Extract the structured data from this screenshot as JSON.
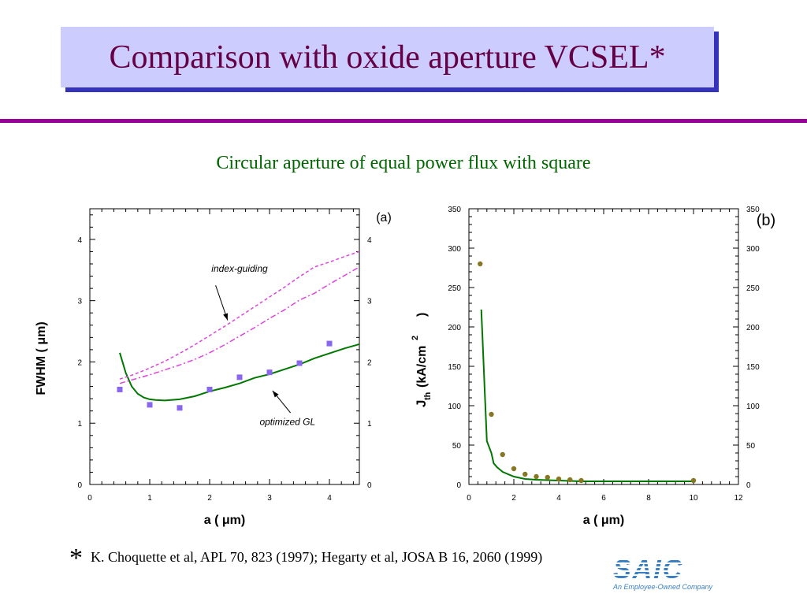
{
  "slide": {
    "title": "Comparison with oxide aperture VCSEL*",
    "subtitle": "Circular aperture of equal power flux with square",
    "footnote_star": "*",
    "footnote_text": "K. Choquette et al, APL 70, 823 (1997);   Hegarty et al, JOSA B 16, 2060 (1999)",
    "logo_word": "SAIC",
    "logo_tagline": "An Employee-Owned Company"
  },
  "colors": {
    "title_box": "#ccccff",
    "title_shadow": "#3333bb",
    "title_text": "#660044",
    "rule": "#990099",
    "subtitle_text": "#006600",
    "curve_green": "#007700",
    "dash_magenta": "#dd44dd",
    "marker_square": "#8866ee",
    "marker_dot": "#887722",
    "logo": "#3a7fc4"
  },
  "chart_data": [
    {
      "panel_label": "(a)",
      "type": "line",
      "xlim": [
        0,
        4.5
      ],
      "ylim": [
        0,
        4.5
      ],
      "xticks": [
        0,
        1,
        2,
        3,
        4
      ],
      "yticks": [
        0,
        1,
        2,
        3,
        4
      ],
      "xlabel": "a ( μm)",
      "ylabel": "FWHM ( μm)",
      "grid": false,
      "series": [
        {
          "style": "solid",
          "points": [
            [
              0.5,
              2.15
            ],
            [
              0.6,
              1.82
            ],
            [
              0.7,
              1.6
            ],
            [
              0.8,
              1.48
            ],
            [
              0.9,
              1.42
            ],
            [
              1.0,
              1.39
            ],
            [
              1.1,
              1.38
            ],
            [
              1.25,
              1.37
            ],
            [
              1.5,
              1.39
            ],
            [
              1.75,
              1.44
            ],
            [
              2.0,
              1.52
            ],
            [
              2.25,
              1.58
            ],
            [
              2.5,
              1.65
            ],
            [
              2.75,
              1.74
            ],
            [
              3.0,
              1.8
            ],
            [
              3.25,
              1.88
            ],
            [
              3.5,
              1.96
            ],
            [
              3.75,
              2.06
            ],
            [
              4.0,
              2.14
            ],
            [
              4.25,
              2.22
            ],
            [
              4.5,
              2.29
            ]
          ]
        },
        {
          "style": "dashed",
          "points": [
            [
              0.5,
              1.72
            ],
            [
              0.75,
              1.8
            ],
            [
              1.0,
              1.9
            ],
            [
              1.25,
              2.01
            ],
            [
              1.5,
              2.14
            ],
            [
              1.75,
              2.28
            ],
            [
              2.0,
              2.43
            ],
            [
              2.25,
              2.58
            ],
            [
              2.5,
              2.74
            ],
            [
              2.75,
              2.9
            ],
            [
              3.0,
              3.06
            ],
            [
              3.25,
              3.22
            ],
            [
              3.5,
              3.39
            ],
            [
              3.75,
              3.55
            ],
            [
              4.0,
              3.63
            ],
            [
              4.25,
              3.72
            ],
            [
              4.5,
              3.8
            ]
          ]
        },
        {
          "style": "dash-dot",
          "points": [
            [
              0.5,
              1.65
            ],
            [
              0.75,
              1.72
            ],
            [
              1.0,
              1.79
            ],
            [
              1.25,
              1.87
            ],
            [
              1.5,
              1.95
            ],
            [
              1.75,
              2.04
            ],
            [
              2.0,
              2.15
            ],
            [
              2.25,
              2.28
            ],
            [
              2.5,
              2.42
            ],
            [
              2.75,
              2.56
            ],
            [
              3.0,
              2.71
            ],
            [
              3.25,
              2.85
            ],
            [
              3.5,
              3.01
            ],
            [
              3.75,
              3.12
            ],
            [
              4.0,
              3.27
            ],
            [
              4.25,
              3.41
            ],
            [
              4.5,
              3.55
            ]
          ]
        },
        {
          "style": "square-markers",
          "points": [
            [
              0.5,
              1.55
            ],
            [
              1.0,
              1.3
            ],
            [
              1.5,
              1.25
            ],
            [
              2.0,
              1.55
            ],
            [
              2.5,
              1.75
            ],
            [
              3.0,
              1.83
            ],
            [
              3.5,
              1.98
            ],
            [
              4.0,
              2.3
            ]
          ]
        }
      ],
      "annotations": [
        {
          "text": "index-guiding",
          "at": [
            2.5,
            3.47
          ],
          "arrow_from": [
            2.1,
            3.25
          ],
          "arrow_to": [
            2.3,
            2.68
          ]
        },
        {
          "text": "optimized GL",
          "at": [
            3.3,
            0.97
          ],
          "arrow_from": [
            3.35,
            1.17
          ],
          "arrow_to": [
            3.05,
            1.53
          ]
        }
      ]
    },
    {
      "panel_label": "(b)",
      "type": "line",
      "xlim": [
        0,
        12
      ],
      "ylim": [
        0,
        350
      ],
      "xticks": [
        0,
        2,
        4,
        6,
        8,
        10,
        12
      ],
      "yticks": [
        0,
        50,
        100,
        150,
        200,
        250,
        300,
        350
      ],
      "xlabel": "a ( μm)",
      "ylabel": "J",
      "ylabel_sub": "th",
      "ylabel_rest": "(kA/cm",
      "ylabel_sup": "2",
      "ylabel_close": ")",
      "grid": false,
      "series": [
        {
          "style": "solid",
          "points": [
            [
              0.55,
              222
            ],
            [
              0.6,
              190
            ],
            [
              0.7,
              120
            ],
            [
              0.8,
              55
            ],
            [
              1.0,
              40
            ],
            [
              1.1,
              27
            ],
            [
              1.25,
              22
            ],
            [
              1.5,
              16
            ],
            [
              2.0,
              10
            ],
            [
              2.5,
              7
            ],
            [
              3.0,
              6
            ],
            [
              4.0,
              5
            ],
            [
              5.0,
              4
            ],
            [
              6.0,
              4
            ],
            [
              8.0,
              4
            ],
            [
              10.0,
              4
            ]
          ]
        },
        {
          "style": "dot-markers",
          "points": [
            [
              0.5,
              280
            ],
            [
              1.0,
              89
            ],
            [
              1.5,
              38
            ],
            [
              2.0,
              20
            ],
            [
              2.5,
              13
            ],
            [
              3.0,
              10
            ],
            [
              3.5,
              9
            ],
            [
              4.0,
              7
            ],
            [
              4.5,
              6
            ],
            [
              5.0,
              5
            ],
            [
              10.0,
              5
            ]
          ]
        }
      ]
    }
  ]
}
